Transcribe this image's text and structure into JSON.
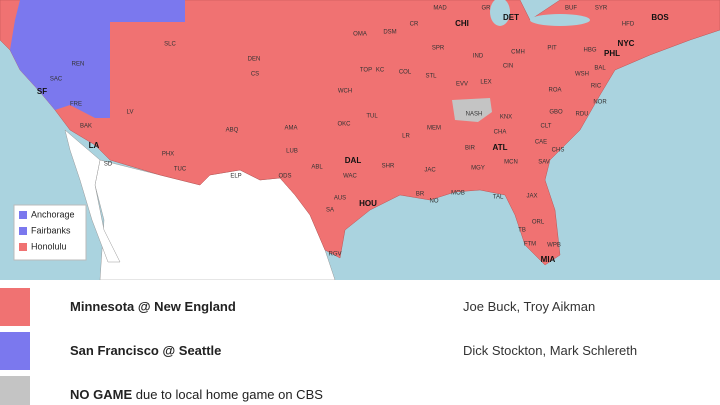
{
  "map": {
    "legend": [
      {
        "name": "Anchorage",
        "color": "#7b78ee"
      },
      {
        "name": "Fairbanks",
        "color": "#7b78ee"
      },
      {
        "name": "Honolulu",
        "color": "#f07272"
      }
    ],
    "cities": [
      "MAD",
      "GR",
      "DET",
      "BUF",
      "SYR",
      "BOS",
      "HFD",
      "NYC",
      "CHI",
      "SPR",
      "DSM",
      "OMA",
      "CR",
      "TOP",
      "KC",
      "COL",
      "STL",
      "IND",
      "CIN",
      "CMH",
      "PIT",
      "PHL",
      "HBG",
      "BAL",
      "WSH",
      "ROA",
      "RIC",
      "NOR",
      "RDU",
      "GBO",
      "CLT",
      "CAE",
      "CHS",
      "LEX",
      "EVV",
      "NASH",
      "KNX",
      "CHA",
      "ATL",
      "BIR",
      "MEM",
      "LR",
      "TUL",
      "OKC",
      "WCH",
      "AMA",
      "LUB",
      "ABL",
      "DAL",
      "WAC",
      "AUS",
      "SA",
      "HOU",
      "SHR",
      "JAC",
      "BR",
      "NO",
      "MOB",
      "MGY",
      "MCN",
      "SAV",
      "TAL",
      "JAX",
      "ORL",
      "TB",
      "FTM",
      "WPB",
      "MIA",
      "ELP",
      "ODS",
      "PHX",
      "TUC",
      "ABQ",
      "DEN",
      "CS",
      "SLC",
      "LV",
      "LA",
      "SD",
      "BAK",
      "FRE",
      "SAC",
      "SF",
      "REN",
      "RGV"
    ]
  },
  "games": [
    {
      "label": "Minnesota @ New England",
      "announcers": "Joe Buck, Troy Aikman",
      "color": "#f07272"
    },
    {
      "label": "San Francisco @ Seattle",
      "announcers": "Dick Stockton, Mark Schlereth",
      "color": "#7b78ee"
    },
    {
      "label": "NO GAME",
      "rest": "due to local home game on CBS",
      "color": "#c4c4c4"
    }
  ]
}
